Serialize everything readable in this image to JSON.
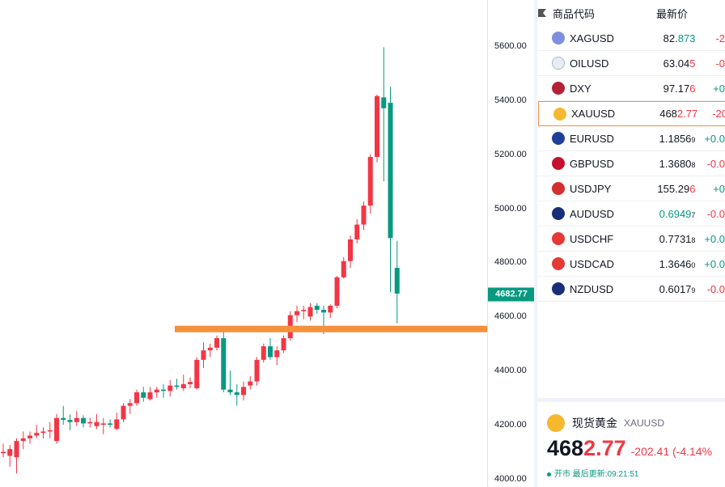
{
  "chart_data": {
    "type": "candlestick",
    "symbol": "XAUUSD",
    "price_axis": {
      "ticks": [
        "5600.00",
        "5400.00",
        "5200.00",
        "5000.00",
        "4800.00",
        "4600.00",
        "4400.00",
        "4200.00",
        "4000.00"
      ],
      "tick_values": [
        5600,
        5400,
        5200,
        5000,
        4800,
        4600,
        4400,
        4200,
        4000
      ],
      "range": [
        3970,
        5770
      ],
      "current_price_label": "4682.77",
      "current_price": 4682.77
    },
    "horizontal_line": {
      "price": 4554,
      "color": "#f5903d"
    },
    "colors": {
      "up": "#f23645",
      "down": "#089981"
    },
    "candles": [
      {
        "o": 4095,
        "h": 4130,
        "l": 4080,
        "c": 4100
      },
      {
        "o": 4085,
        "h": 4125,
        "l": 4045,
        "c": 4110
      },
      {
        "o": 4080,
        "h": 4150,
        "l": 4020,
        "c": 4140
      },
      {
        "o": 4140,
        "h": 4175,
        "l": 4110,
        "c": 4150
      },
      {
        "o": 4150,
        "h": 4175,
        "l": 4130,
        "c": 4160
      },
      {
        "o": 4160,
        "h": 4200,
        "l": 4150,
        "c": 4170
      },
      {
        "o": 4170,
        "h": 4190,
        "l": 4150,
        "c": 4175
      },
      {
        "o": 4175,
        "h": 4210,
        "l": 4150,
        "c": 4180
      },
      {
        "o": 4140,
        "h": 4240,
        "l": 4130,
        "c": 4225
      },
      {
        "o": 4225,
        "h": 4270,
        "l": 4200,
        "c": 4218
      },
      {
        "o": 4218,
        "h": 4238,
        "l": 4180,
        "c": 4210
      },
      {
        "o": 4210,
        "h": 4250,
        "l": 4195,
        "c": 4225
      },
      {
        "o": 4225,
        "h": 4235,
        "l": 4190,
        "c": 4205
      },
      {
        "o": 4205,
        "h": 4225,
        "l": 4190,
        "c": 4210
      },
      {
        "o": 4195,
        "h": 4240,
        "l": 4185,
        "c": 4210
      },
      {
        "o": 4200,
        "h": 4225,
        "l": 4165,
        "c": 4205
      },
      {
        "o": 4205,
        "h": 4220,
        "l": 4190,
        "c": 4200
      },
      {
        "o": 4185,
        "h": 4245,
        "l": 4180,
        "c": 4220
      },
      {
        "o": 4220,
        "h": 4280,
        "l": 4210,
        "c": 4270
      },
      {
        "o": 4270,
        "h": 4295,
        "l": 4240,
        "c": 4280
      },
      {
        "o": 4280,
        "h": 4330,
        "l": 4270,
        "c": 4320
      },
      {
        "o": 4320,
        "h": 4340,
        "l": 4285,
        "c": 4300
      },
      {
        "o": 4295,
        "h": 4340,
        "l": 4290,
        "c": 4320
      },
      {
        "o": 4320,
        "h": 4340,
        "l": 4300,
        "c": 4330
      },
      {
        "o": 4330,
        "h": 4350,
        "l": 4300,
        "c": 4325
      },
      {
        "o": 4325,
        "h": 4365,
        "l": 4305,
        "c": 4345
      },
      {
        "o": 4345,
        "h": 4370,
        "l": 4330,
        "c": 4340
      },
      {
        "o": 4335,
        "h": 4385,
        "l": 4325,
        "c": 4350
      },
      {
        "o": 4350,
        "h": 4375,
        "l": 4335,
        "c": 4358
      },
      {
        "o": 4335,
        "h": 4450,
        "l": 4330,
        "c": 4440
      },
      {
        "o": 4440,
        "h": 4505,
        "l": 4410,
        "c": 4475
      },
      {
        "o": 4475,
        "h": 4500,
        "l": 4450,
        "c": 4485
      },
      {
        "o": 4485,
        "h": 4530,
        "l": 4475,
        "c": 4520
      },
      {
        "o": 4520,
        "h": 4560,
        "l": 4320,
        "c": 4330
      },
      {
        "o": 4330,
        "h": 4400,
        "l": 4310,
        "c": 4320
      },
      {
        "o": 4320,
        "h": 4350,
        "l": 4270,
        "c": 4310
      },
      {
        "o": 4310,
        "h": 4360,
        "l": 4290,
        "c": 4340
      },
      {
        "o": 4345,
        "h": 4380,
        "l": 4330,
        "c": 4360
      },
      {
        "o": 4360,
        "h": 4450,
        "l": 4345,
        "c": 4440
      },
      {
        "o": 4440,
        "h": 4500,
        "l": 4430,
        "c": 4490
      },
      {
        "o": 4490,
        "h": 4520,
        "l": 4440,
        "c": 4450
      },
      {
        "o": 4450,
        "h": 4490,
        "l": 4420,
        "c": 4475
      },
      {
        "o": 4475,
        "h": 4530,
        "l": 4465,
        "c": 4520
      },
      {
        "o": 4520,
        "h": 4620,
        "l": 4510,
        "c": 4605
      },
      {
        "o": 4605,
        "h": 4640,
        "l": 4580,
        "c": 4620
      },
      {
        "o": 4620,
        "h": 4640,
        "l": 4590,
        "c": 4625
      },
      {
        "o": 4600,
        "h": 4650,
        "l": 4585,
        "c": 4635
      },
      {
        "o": 4640,
        "h": 4650,
        "l": 4610,
        "c": 4625
      },
      {
        "o": 4625,
        "h": 4640,
        "l": 4535,
        "c": 4615
      },
      {
        "o": 4615,
        "h": 4645,
        "l": 4595,
        "c": 4640
      },
      {
        "o": 4640,
        "h": 4750,
        "l": 4630,
        "c": 4745
      },
      {
        "o": 4745,
        "h": 4820,
        "l": 4740,
        "c": 4805
      },
      {
        "o": 4805,
        "h": 4900,
        "l": 4780,
        "c": 4885
      },
      {
        "o": 4885,
        "h": 4960,
        "l": 4870,
        "c": 4940
      },
      {
        "o": 4940,
        "h": 5025,
        "l": 4920,
        "c": 5010
      },
      {
        "o": 5010,
        "h": 5200,
        "l": 4980,
        "c": 5190
      },
      {
        "o": 5190,
        "h": 5420,
        "l": 5170,
        "c": 5415
      },
      {
        "o": 5410,
        "h": 5595,
        "l": 5100,
        "c": 5370
      },
      {
        "o": 5390,
        "h": 5450,
        "l": 4690,
        "c": 4890
      },
      {
        "o": 4780,
        "h": 4880,
        "l": 4575,
        "c": 4685
      }
    ]
  },
  "watchlist": {
    "header": {
      "flag_icon": "flag-icon",
      "symbol_label": "商品代码",
      "last_label": "最新价"
    },
    "rows": [
      {
        "symbol": "XAGUSD",
        "icon": "silver-icon",
        "icon_color": "#7f8fe0",
        "last_main": "82.",
        "last_hl": "873",
        "last_small": "",
        "hl_dir": "up",
        "change": "-2",
        "change_dir": "down",
        "selected": false
      },
      {
        "symbol": "OILUSD",
        "icon": "oil-icon",
        "icon_color": "#e8ecf4",
        "last_main": "63.04",
        "last_hl": "5",
        "last_small": "",
        "hl_dir": "down",
        "change": "-0",
        "change_dir": "down",
        "selected": false
      },
      {
        "symbol": "DXY",
        "icon": "us-flag-icon",
        "icon_color": "#b22234",
        "last_main": "97.17",
        "last_hl": "6",
        "last_small": "",
        "hl_dir": "down",
        "change": "+0",
        "change_dir": "up",
        "selected": false
      },
      {
        "symbol": "XAUUSD",
        "icon": "gold-icon",
        "icon_color": "#f5b82e",
        "last_main": "468",
        "last_hl": "2.77",
        "last_small": "",
        "hl_dir": "down",
        "change": "-20",
        "change_dir": "down",
        "selected": true
      },
      {
        "symbol": "EURUSD",
        "icon": "eu-flag-icon",
        "icon_color": "#1d3f9a",
        "last_main": "1.1856",
        "last_hl": "",
        "last_small": "9",
        "hl_dir": "down",
        "change": "+0.0",
        "change_dir": "up",
        "selected": false
      },
      {
        "symbol": "GBPUSD",
        "icon": "uk-flag-icon",
        "icon_color": "#c8102e",
        "last_main": "1.3680",
        "last_hl": "",
        "last_small": "8",
        "hl_dir": "down",
        "change": "-0.0",
        "change_dir": "down",
        "selected": false
      },
      {
        "symbol": "USDJPY",
        "icon": "jp-flag-icon",
        "icon_color": "#d32f2f",
        "last_main": "155.29",
        "last_hl": "6",
        "last_small": "",
        "hl_dir": "down",
        "change": "+0",
        "change_dir": "up",
        "selected": false
      },
      {
        "symbol": "AUDUSD",
        "icon": "au-flag-icon",
        "icon_color": "#1a2f7a",
        "last_main": "0.6949",
        "last_hl": "",
        "last_small": "7",
        "hl_dir": "up",
        "change": "-0.0",
        "change_dir": "down",
        "selected": false
      },
      {
        "symbol": "USDCHF",
        "icon": "ch-flag-icon",
        "icon_color": "#e53935",
        "last_main": "0.7731",
        "last_hl": "",
        "last_small": "8",
        "hl_dir": "down",
        "change": "+0.0",
        "change_dir": "up",
        "selected": false
      },
      {
        "symbol": "USDCAD",
        "icon": "ca-flag-icon",
        "icon_color": "#e53935",
        "last_main": "1.3646",
        "last_hl": "",
        "last_small": "0",
        "hl_dir": "down",
        "change": "+0.0",
        "change_dir": "up",
        "selected": false
      },
      {
        "symbol": "NZDUSD",
        "icon": "nz-flag-icon",
        "icon_color": "#1a2f7a",
        "last_main": "0.6017",
        "last_hl": "",
        "last_small": "9",
        "hl_dir": "down",
        "change": "-0.0",
        "change_dir": "down",
        "selected": false
      }
    ]
  },
  "details": {
    "icon": "gold-icon",
    "name": "现货黄金",
    "symbol": "XAUUSD",
    "price_main": "468",
    "price_hl": "2.77",
    "change": "-202.41 (-4.14%",
    "status": "开市",
    "updated": "最后更新:09:21:51"
  }
}
